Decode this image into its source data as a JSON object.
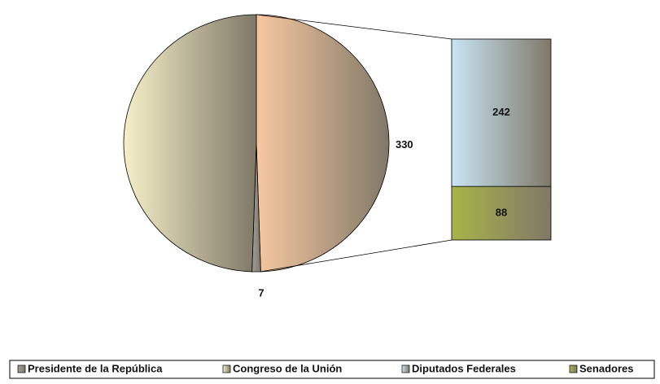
{
  "chart_data": {
    "type": "pie-of-bar",
    "categories": [
      "Presidente de la República",
      "Congreso de la Unión",
      "Diputados Federales",
      "Senadores"
    ],
    "values": [
      7,
      330,
      242,
      88
    ],
    "value_labels": [
      "7",
      null,
      "242",
      "88"
    ],
    "colors": [
      "#a0a0a0",
      "#f5f0c8",
      "#c8e6f5",
      "#a8b44a"
    ],
    "other_value": 330,
    "other_color": "#f7c8a0",
    "split": [
      2,
      3
    ],
    "legend": "bottom"
  }
}
